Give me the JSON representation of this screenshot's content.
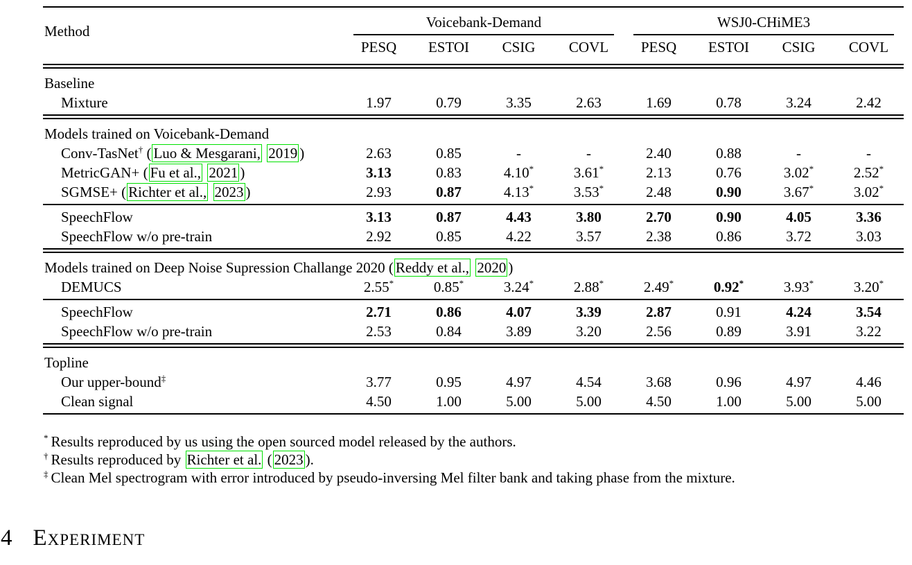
{
  "page": {
    "background": "#ffffff",
    "text_color": "#000000",
    "link_box_color": "#00e000"
  },
  "table": {
    "method_header": "Method",
    "groups": [
      {
        "label": "Voicebank-Demand"
      },
      {
        "label": "WSJ0-CHiME3"
      }
    ],
    "metrics": [
      "PESQ",
      "ESTOI",
      "CSIG",
      "COVL",
      "PESQ",
      "ESTOI",
      "CSIG",
      "COVL"
    ],
    "rows": [
      {
        "type": "rule",
        "style": "double"
      },
      {
        "type": "section",
        "parts": [
          {
            "t": "Baseline"
          }
        ]
      },
      {
        "type": "data",
        "method": [
          {
            "t": "Mixture"
          }
        ],
        "values": [
          {
            "v": "1.97"
          },
          {
            "v": "0.79"
          },
          {
            "v": "3.35"
          },
          {
            "v": "2.63"
          },
          {
            "v": "1.69"
          },
          {
            "v": "0.78"
          },
          {
            "v": "3.24"
          },
          {
            "v": "2.42"
          }
        ]
      },
      {
        "type": "rule",
        "style": "double"
      },
      {
        "type": "section",
        "parts": [
          {
            "t": "Models trained on Voicebank-Demand"
          }
        ]
      },
      {
        "type": "data",
        "method": [
          {
            "t": "Conv-TasNet"
          },
          {
            "t": "†",
            "sup": true
          },
          {
            "t": " ("
          },
          {
            "t": "Luo & Mesgarani,",
            "link": true
          },
          {
            "t": " "
          },
          {
            "t": "2019",
            "link": true
          },
          {
            "t": ")"
          }
        ],
        "values": [
          {
            "v": "2.63"
          },
          {
            "v": "0.85"
          },
          {
            "v": "-"
          },
          {
            "v": "-"
          },
          {
            "v": "2.40"
          },
          {
            "v": "0.88"
          },
          {
            "v": "-"
          },
          {
            "v": "-"
          }
        ]
      },
      {
        "type": "data",
        "method": [
          {
            "t": "MetricGAN+ ("
          },
          {
            "t": "Fu et al.,",
            "link": true
          },
          {
            "t": " "
          },
          {
            "t": "2021",
            "link": true
          },
          {
            "t": ")"
          }
        ],
        "values": [
          {
            "v": "3.13",
            "bold": true
          },
          {
            "v": "0.83"
          },
          {
            "v": "4.10",
            "star": true
          },
          {
            "v": "3.61",
            "star": true
          },
          {
            "v": "2.13"
          },
          {
            "v": "0.76"
          },
          {
            "v": "3.02",
            "star": true
          },
          {
            "v": "2.52",
            "star": true
          }
        ]
      },
      {
        "type": "data",
        "method": [
          {
            "t": "SGMSE+ ("
          },
          {
            "t": "Richter et al.,",
            "link": true
          },
          {
            "t": " "
          },
          {
            "t": "2023",
            "link": true
          },
          {
            "t": ")"
          }
        ],
        "values": [
          {
            "v": "2.93"
          },
          {
            "v": "0.87",
            "bold": true
          },
          {
            "v": "4.13",
            "star": true
          },
          {
            "v": "3.53",
            "star": true
          },
          {
            "v": "2.48"
          },
          {
            "v": "0.90",
            "bold": true
          },
          {
            "v": "3.67",
            "star": true
          },
          {
            "v": "3.02",
            "star": true
          }
        ]
      },
      {
        "type": "rule",
        "style": "single"
      },
      {
        "type": "data",
        "method": [
          {
            "t": "SpeechFlow"
          }
        ],
        "values": [
          {
            "v": "3.13",
            "bold": true
          },
          {
            "v": "0.87",
            "bold": true
          },
          {
            "v": "4.43",
            "bold": true
          },
          {
            "v": "3.80",
            "bold": true
          },
          {
            "v": "2.70",
            "bold": true
          },
          {
            "v": "0.90",
            "bold": true
          },
          {
            "v": "4.05",
            "bold": true
          },
          {
            "v": "3.36",
            "bold": true
          }
        ]
      },
      {
        "type": "data",
        "method": [
          {
            "t": "SpeechFlow w/o pre-train"
          }
        ],
        "values": [
          {
            "v": "2.92"
          },
          {
            "v": "0.85"
          },
          {
            "v": "4.22"
          },
          {
            "v": "3.57"
          },
          {
            "v": "2.38"
          },
          {
            "v": "0.86"
          },
          {
            "v": "3.72"
          },
          {
            "v": "3.03"
          }
        ]
      },
      {
        "type": "rule",
        "style": "double"
      },
      {
        "type": "section",
        "parts": [
          {
            "t": "Models trained on Deep Noise Supression Challange 2020 ("
          },
          {
            "t": "Reddy et al.,",
            "link": true
          },
          {
            "t": " "
          },
          {
            "t": "2020",
            "link": true
          },
          {
            "t": ")"
          }
        ]
      },
      {
        "type": "data",
        "method": [
          {
            "t": "DEMUCS"
          }
        ],
        "values": [
          {
            "v": "2.55",
            "star": true
          },
          {
            "v": "0.85",
            "star": true
          },
          {
            "v": "3.24",
            "star": true
          },
          {
            "v": "2.88",
            "star": true
          },
          {
            "v": "2.49",
            "star": true
          },
          {
            "v": "0.92",
            "star": true,
            "bold": true
          },
          {
            "v": "3.93",
            "star": true
          },
          {
            "v": "3.20",
            "star": true
          }
        ]
      },
      {
        "type": "rule",
        "style": "single"
      },
      {
        "type": "data",
        "method": [
          {
            "t": "SpeechFlow"
          }
        ],
        "values": [
          {
            "v": "2.71",
            "bold": true
          },
          {
            "v": "0.86",
            "bold": true
          },
          {
            "v": "4.07",
            "bold": true
          },
          {
            "v": "3.39",
            "bold": true
          },
          {
            "v": "2.87",
            "bold": true
          },
          {
            "v": "0.91"
          },
          {
            "v": "4.24",
            "bold": true
          },
          {
            "v": "3.54",
            "bold": true
          }
        ]
      },
      {
        "type": "data",
        "method": [
          {
            "t": "SpeechFlow w/o pre-train"
          }
        ],
        "values": [
          {
            "v": "2.53"
          },
          {
            "v": "0.84"
          },
          {
            "v": "3.89"
          },
          {
            "v": "3.20"
          },
          {
            "v": "2.56"
          },
          {
            "v": "0.89"
          },
          {
            "v": "3.91"
          },
          {
            "v": "3.22"
          }
        ]
      },
      {
        "type": "rule",
        "style": "double"
      },
      {
        "type": "section",
        "parts": [
          {
            "t": "Topline"
          }
        ]
      },
      {
        "type": "data",
        "method": [
          {
            "t": "Our upper-bound"
          },
          {
            "t": "‡",
            "sup": true
          }
        ],
        "values": [
          {
            "v": "3.77"
          },
          {
            "v": "0.95"
          },
          {
            "v": "4.97"
          },
          {
            "v": "4.54"
          },
          {
            "v": "3.68"
          },
          {
            "v": "0.96"
          },
          {
            "v": "4.97"
          },
          {
            "v": "4.46"
          }
        ]
      },
      {
        "type": "data",
        "method": [
          {
            "t": "Clean signal"
          }
        ],
        "values": [
          {
            "v": "4.50"
          },
          {
            "v": "1.00"
          },
          {
            "v": "5.00"
          },
          {
            "v": "5.00"
          },
          {
            "v": "4.50"
          },
          {
            "v": "1.00"
          },
          {
            "v": "5.00"
          },
          {
            "v": "5.00"
          }
        ]
      },
      {
        "type": "rule",
        "style": "single"
      }
    ]
  },
  "footnotes": [
    {
      "marker": "*",
      "parts": [
        {
          "t": "Results reproduced by us using the open sourced model released by the authors."
        }
      ]
    },
    {
      "marker": "†",
      "parts": [
        {
          "t": "Results reproduced by "
        },
        {
          "t": "Richter et al.",
          "link": true
        },
        {
          "t": " ("
        },
        {
          "t": "2023",
          "link": true
        },
        {
          "t": ")."
        }
      ]
    },
    {
      "marker": "‡",
      "parts": [
        {
          "t": "Clean Mel spectrogram with error introduced by pseudo-inversing Mel filter bank and taking phase from the mixture."
        }
      ]
    }
  ],
  "heading": {
    "number": "4",
    "title": "Experiment"
  }
}
